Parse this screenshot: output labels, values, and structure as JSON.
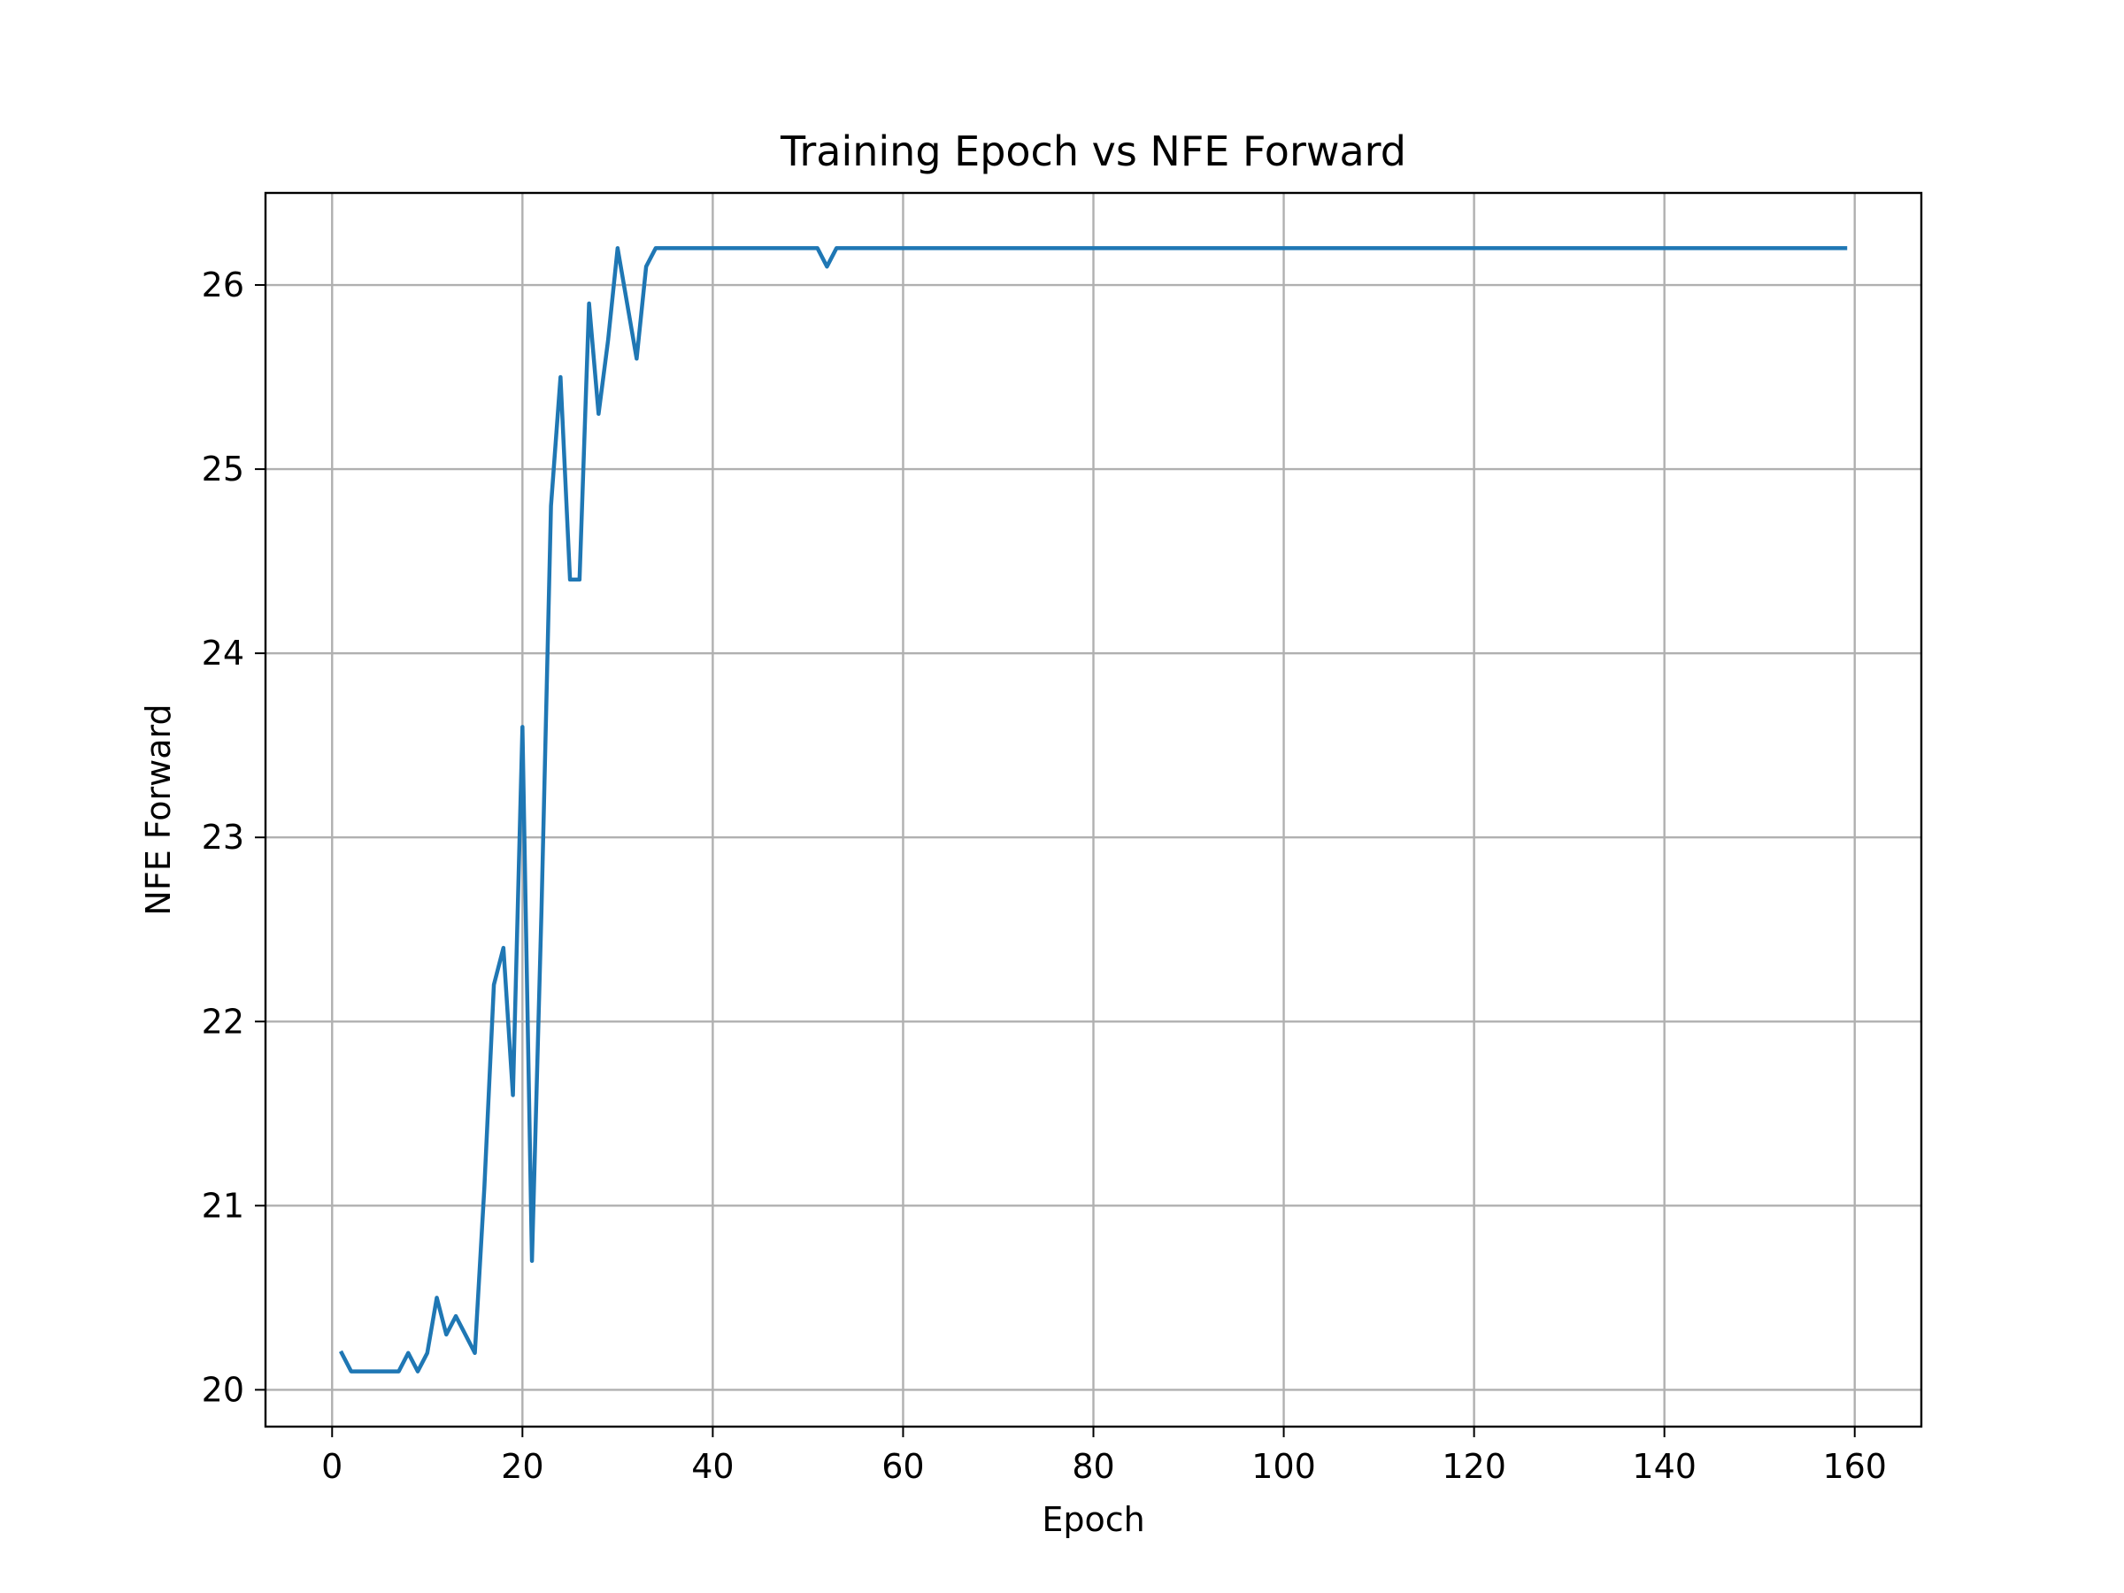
{
  "chart_data": {
    "type": "line",
    "title": "Training Epoch vs NFE Forward",
    "xlabel": "Epoch",
    "ylabel": "NFE Forward",
    "xlim": [
      -7,
      167
    ],
    "ylim": [
      19.8,
      26.5
    ],
    "xticks": [
      0,
      20,
      40,
      60,
      80,
      100,
      120,
      140,
      160
    ],
    "yticks": [
      20,
      21,
      22,
      23,
      24,
      25,
      26
    ],
    "grid": true,
    "legend": "none",
    "series": [
      {
        "color": "#1f77b4",
        "x": [
          1,
          2,
          3,
          4,
          5,
          6,
          7,
          8,
          9,
          10,
          11,
          12,
          13,
          14,
          15,
          16,
          17,
          18,
          19,
          20,
          21,
          22,
          23,
          24,
          25,
          26,
          27,
          28,
          29,
          30,
          31,
          32,
          33,
          34,
          51,
          52,
          53,
          159
        ],
        "y": [
          20.2,
          20.1,
          20.1,
          20.1,
          20.1,
          20.1,
          20.1,
          20.2,
          20.1,
          20.2,
          20.5,
          20.3,
          20.4,
          20.3,
          20.2,
          21.1,
          22.2,
          22.4,
          21.6,
          23.6,
          20.7,
          22.6,
          24.8,
          25.5,
          24.4,
          24.4,
          25.9,
          25.3,
          25.7,
          26.2,
          25.9,
          25.6,
          26.1,
          26.2,
          26.2,
          26.1,
          26.2,
          26.2
        ]
      }
    ]
  }
}
